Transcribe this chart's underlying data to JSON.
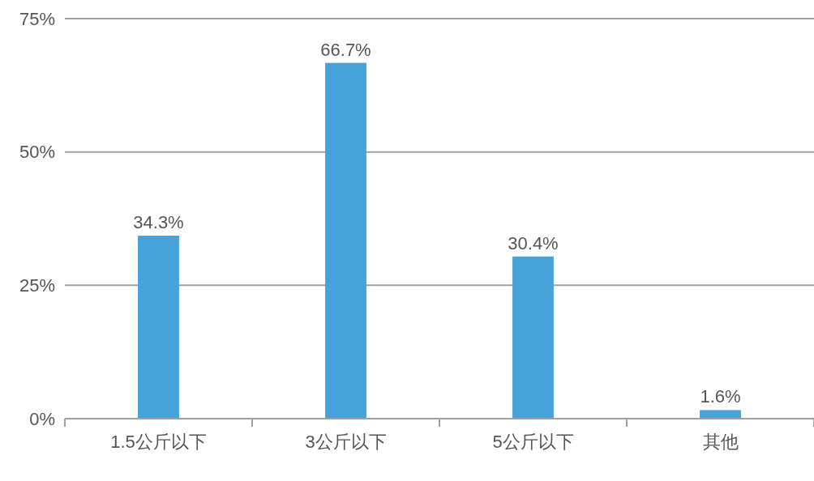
{
  "chart_data": {
    "type": "bar",
    "categories": [
      "1.5公斤以下",
      "3公斤以下",
      "5公斤以下",
      "其他"
    ],
    "values": [
      34.3,
      66.7,
      30.4,
      1.6
    ],
    "value_labels": [
      "34.3%",
      "66.7%",
      "30.4%",
      "1.6%"
    ],
    "color": "#47a1db",
    "ylim": [
      0,
      75
    ],
    "yticks": [
      {
        "value": 0,
        "label": "0%"
      },
      {
        "value": 25,
        "label": "25%"
      },
      {
        "value": 50,
        "label": "50%"
      },
      {
        "value": 75,
        "label": "75%"
      }
    ],
    "grid": "y"
  }
}
